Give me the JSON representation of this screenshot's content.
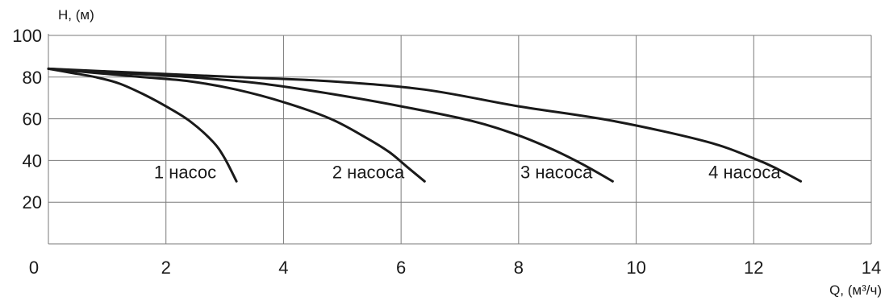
{
  "chart_data": {
    "type": "line",
    "title": "",
    "xlabel": "Q, (м³/ч)",
    "ylabel": "H, (м)",
    "xlim": [
      0,
      14
    ],
    "ylim": [
      0,
      100
    ],
    "x_ticks": [
      0,
      2,
      4,
      6,
      8,
      10,
      12,
      14
    ],
    "y_ticks": [
      20,
      40,
      60,
      80,
      100
    ],
    "y_origin_label": "0",
    "grid": true,
    "legend": "none",
    "series": [
      {
        "name": "1 насос",
        "x": [
          0,
          0.4,
          0.8,
          1.2,
          1.6,
          2.0,
          2.4,
          2.8,
          3.0,
          3.2
        ],
        "y": [
          84,
          82,
          80,
          77,
          72,
          66,
          59,
          49,
          41,
          30
        ]
      },
      {
        "name": "2 насоса",
        "x": [
          0,
          0.8,
          1.6,
          2.4,
          3.2,
          4.0,
          4.8,
          5.4,
          5.8,
          6.1,
          6.4
        ],
        "y": [
          84,
          82,
          80,
          78,
          74,
          68,
          60,
          51,
          44,
          37,
          30
        ]
      },
      {
        "name": "3 насоса",
        "x": [
          0,
          1.2,
          2.4,
          3.6,
          4.8,
          6.0,
          7.2,
          8.0,
          8.6,
          9.1,
          9.6
        ],
        "y": [
          84,
          82,
          80,
          77,
          72,
          66,
          59,
          52,
          45,
          38,
          30
        ]
      },
      {
        "name": "4 насоса",
        "x": [
          0,
          1.6,
          3.2,
          4.8,
          6.4,
          8.0,
          9.6,
          11.2,
          12.0,
          12.4,
          12.8
        ],
        "y": [
          84,
          82,
          80,
          78,
          74,
          66,
          59,
          49,
          41,
          36,
          30
        ]
      }
    ]
  }
}
